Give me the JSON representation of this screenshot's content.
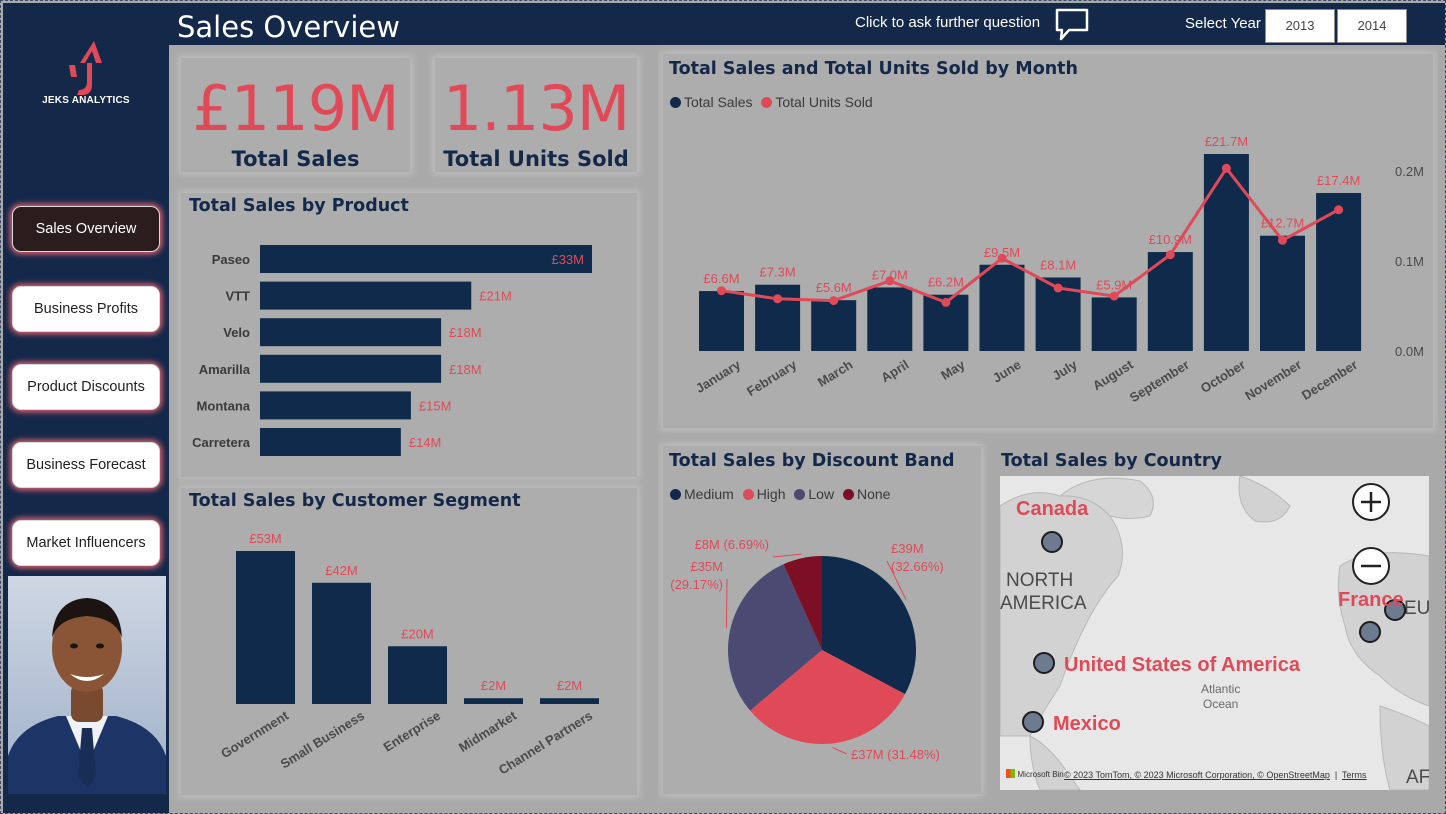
{
  "header": {
    "title": "Sales Overview",
    "ask_question": "Click to ask further question",
    "year_label": "Select Year",
    "years": [
      "2013",
      "2014"
    ]
  },
  "sidebar": {
    "logo_text": "JEKS ANALYTICS",
    "nav": [
      "Sales Overview",
      "Business Profits",
      "Product Discounts",
      "Business Forecast",
      "Market Influencers"
    ],
    "active_index": 0
  },
  "kpis": [
    {
      "value": "£119M",
      "label": "Total Sales"
    },
    {
      "value": "1.13M",
      "label": "Total Units Sold"
    }
  ],
  "colors": {
    "navy": "#14284a",
    "bar": "#0f2a4a",
    "accent": "#e04a58",
    "low": "#4a4a72",
    "none": "#7d0f24"
  },
  "chart_data": [
    {
      "id": "product",
      "type": "bar",
      "orientation": "horizontal",
      "title": "Total Sales by Product",
      "categories": [
        "Paseo",
        "VTT",
        "Velo",
        "Amarilla",
        "Montana",
        "Carretera"
      ],
      "values": [
        33,
        21,
        18,
        18,
        15,
        14
      ],
      "labels": [
        "£33M",
        "£21M",
        "£18M",
        "£18M",
        "£15M",
        "£14M"
      ]
    },
    {
      "id": "segment",
      "type": "bar",
      "title": "Total Sales by Customer Segment",
      "categories": [
        "Government",
        "Small Business",
        "Enterprise",
        "Midmarket",
        "Channel Partners"
      ],
      "values": [
        53,
        42,
        20,
        2,
        2
      ],
      "labels": [
        "£53M",
        "£42M",
        "£20M",
        "£2M",
        "£2M"
      ]
    },
    {
      "id": "monthly",
      "type": "bar+line",
      "title": "Total Sales and Total Units Sold by Month",
      "categories": [
        "January",
        "February",
        "March",
        "April",
        "May",
        "June",
        "July",
        "August",
        "September",
        "October",
        "November",
        "December"
      ],
      "series": [
        {
          "name": "Total Sales",
          "values": [
            6.6,
            7.3,
            5.6,
            7.0,
            6.2,
            9.5,
            8.1,
            5.9,
            10.9,
            21.7,
            12.7,
            17.4
          ],
          "labels": [
            "£6.6M",
            "£7.3M",
            "£5.6M",
            "£7.0M",
            "£6.2M",
            "£9.5M",
            "£8.1M",
            "£5.9M",
            "£10.9M",
            "£21.7M",
            "£12.7M",
            "£17.4M"
          ]
        },
        {
          "name": "Total Units Sold",
          "values": [
            0.067,
            0.058,
            0.056,
            0.078,
            0.054,
            0.103,
            0.07,
            0.061,
            0.107,
            0.203,
            0.123,
            0.157
          ]
        }
      ],
      "y2_ticks": [
        "0.0M",
        "0.1M",
        "0.2M"
      ],
      "y2lim": [
        0,
        0.2
      ]
    },
    {
      "id": "discount",
      "type": "pie",
      "title": "Total Sales by Discount Band",
      "categories": [
        "Medium",
        "High",
        "Low",
        "None"
      ],
      "values": [
        39,
        37,
        35,
        8
      ],
      "labels": [
        "£39M (32.66%)",
        "£37M (31.48%)",
        "£35M (29.17%)",
        "£8M (6.69%)"
      ],
      "legend": "top"
    }
  ],
  "map": {
    "title": "Total Sales by Country",
    "countries": [
      "Canada",
      "United States of America",
      "Mexico",
      "France"
    ],
    "regions": [
      "NORTH",
      "AMERICA",
      "EU",
      "AF"
    ],
    "ocean": [
      "Atlantic",
      "Ocean"
    ],
    "attribution": "© 2023 TomTom, © 2023 Microsoft Corporation, © OpenStreetMap",
    "terms": "Terms",
    "brand": "Microsoft Bing"
  }
}
